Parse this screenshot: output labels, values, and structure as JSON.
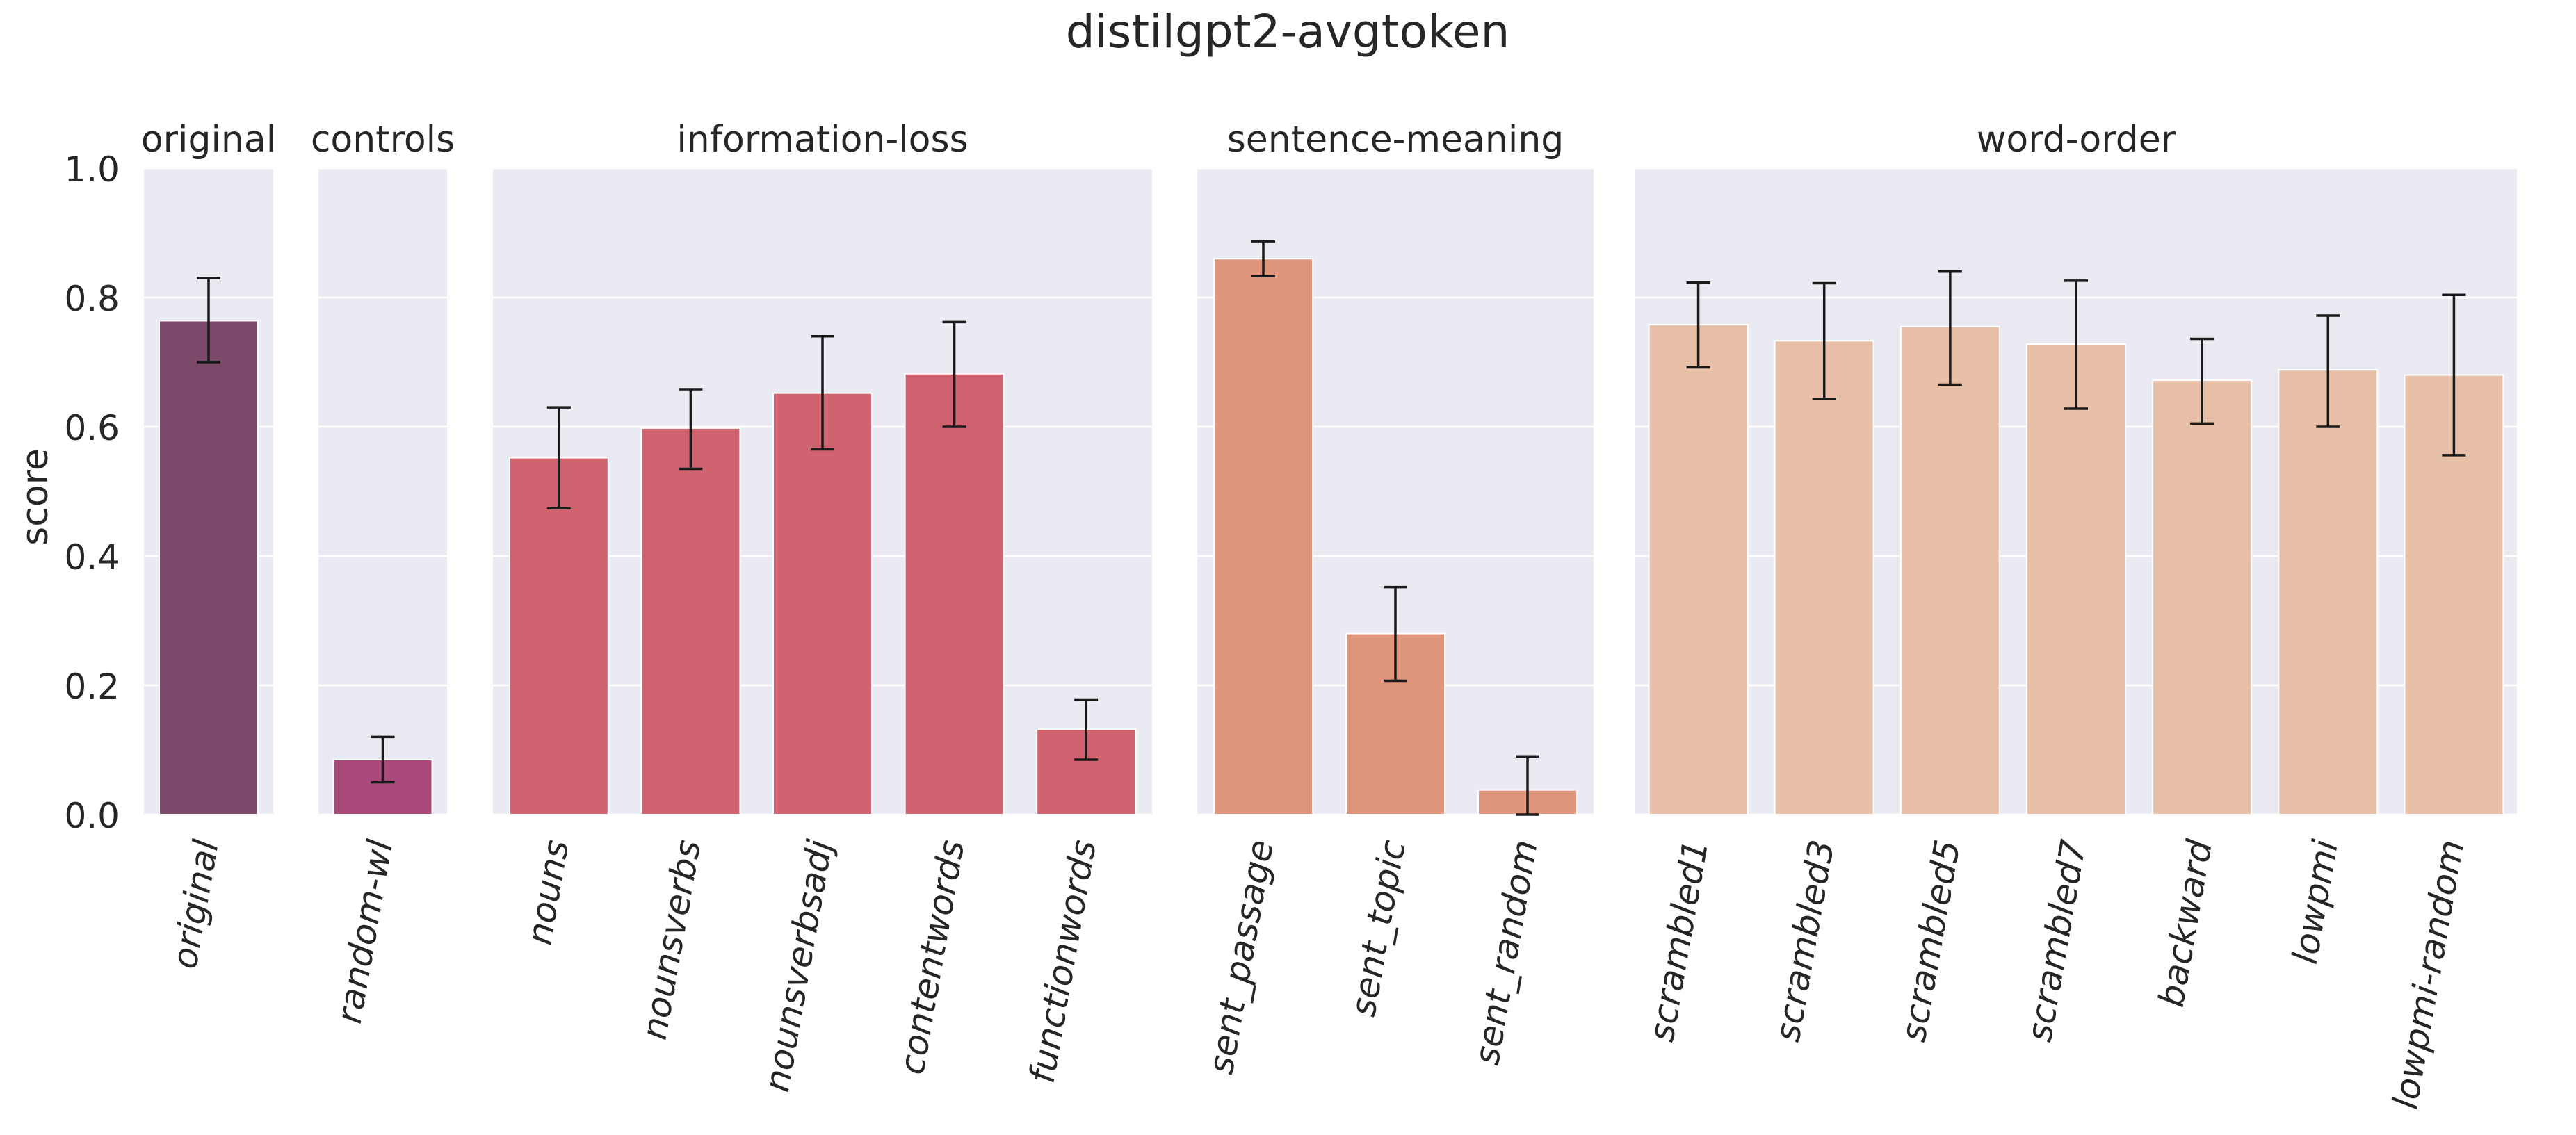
{
  "chart_data": {
    "type": "bar",
    "title": "distilgpt2-avgtoken",
    "ylabel": "score",
    "ylim": [
      0,
      1
    ],
    "yticks": [
      "0.0",
      "0.2",
      "0.4",
      "0.6",
      "0.8",
      "1.0"
    ],
    "grid": true,
    "panels": [
      {
        "title": "original",
        "color": "#7a4868",
        "categories": [
          "original"
        ],
        "values": [
          0.764
        ],
        "error_low": [
          0.7
        ],
        "error_high": [
          0.83
        ]
      },
      {
        "title": "controls",
        "color": "#a8497a",
        "categories": [
          "random-wl"
        ],
        "values": [
          0.085
        ],
        "error_low": [
          0.05
        ],
        "error_high": [
          0.12
        ]
      },
      {
        "title": "information-loss",
        "color": "#d06370",
        "categories": [
          "nouns",
          "nounsverbs",
          "nounsverbsadj",
          "contentwords",
          "functionwords"
        ],
        "values": [
          0.552,
          0.598,
          0.652,
          0.682,
          0.132
        ],
        "error_low": [
          0.474,
          0.535,
          0.565,
          0.6,
          0.085
        ],
        "error_high": [
          0.63,
          0.658,
          0.74,
          0.762,
          0.178
        ]
      },
      {
        "title": "sentence-meaning",
        "color": "#e0957d",
        "categories": [
          "sent_passage",
          "sent_topic",
          "sent_random"
        ],
        "values": [
          0.86,
          0.28,
          0.038
        ],
        "error_low": [
          0.833,
          0.207,
          0.0
        ],
        "error_high": [
          0.887,
          0.352,
          0.09
        ]
      },
      {
        "title": "word-order",
        "color": "#e8c0a8",
        "categories": [
          "scrambled1",
          "scrambled3",
          "scrambled5",
          "scrambled7",
          "backward",
          "lowpmi",
          "lowpmi-random"
        ],
        "values": [
          0.758,
          0.733,
          0.755,
          0.728,
          0.672,
          0.688,
          0.68
        ],
        "error_low": [
          0.692,
          0.643,
          0.665,
          0.628,
          0.605,
          0.6,
          0.556
        ],
        "error_high": [
          0.823,
          0.822,
          0.84,
          0.826,
          0.736,
          0.772,
          0.804
        ]
      }
    ]
  }
}
